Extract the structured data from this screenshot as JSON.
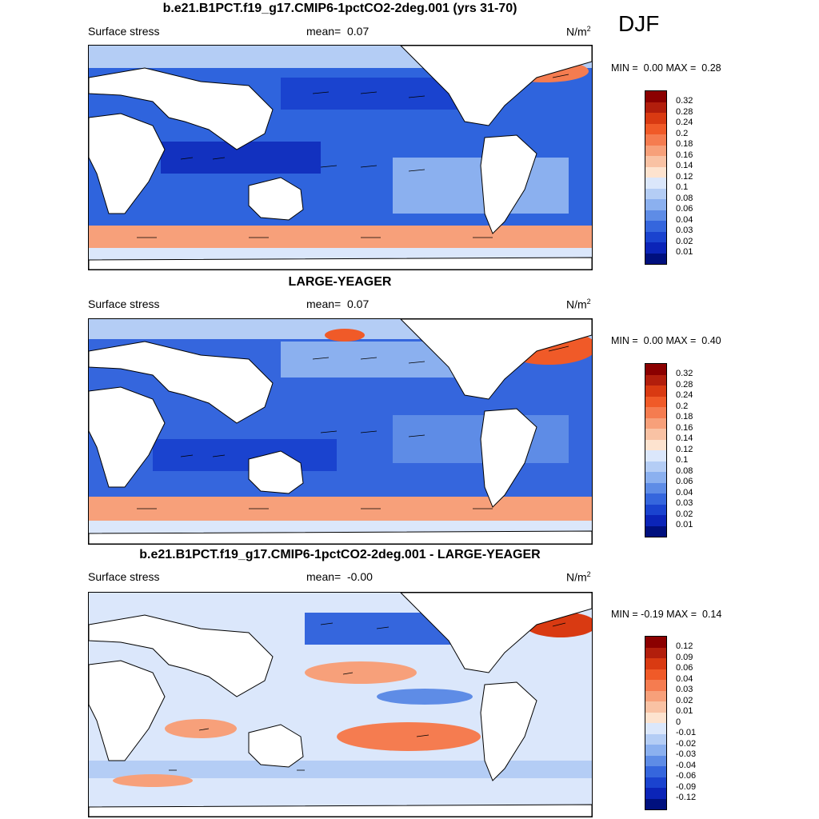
{
  "season": "DJF",
  "panels": [
    {
      "title": "b.e21.B1PCT.f19_g17.CMIP6-1pctCO2-2deg.001 (yrs 31-70)",
      "left_label": "Surface stress",
      "mean_label": "mean=",
      "mean_value": "0.07",
      "units": "N/m",
      "units_sup": "2",
      "min_label": "MIN =",
      "min_value": "0.00",
      "max_label": "MAX =",
      "max_value": "0.28",
      "colorbar_labels": [
        "0.32",
        "0.28",
        "0.24",
        "0.2",
        "0.18",
        "0.16",
        "0.14",
        "0.12",
        "0.1",
        "0.08",
        "0.06",
        "0.04",
        "0.03",
        "0.02",
        "0.01"
      ]
    },
    {
      "title": "LARGE-YEAGER",
      "left_label": "Surface stress",
      "mean_label": "mean=",
      "mean_value": "0.07",
      "units": "N/m",
      "units_sup": "2",
      "min_label": "MIN =",
      "min_value": "0.00",
      "max_label": "MAX =",
      "max_value": "0.40",
      "colorbar_labels": [
        "0.32",
        "0.28",
        "0.24",
        "0.2",
        "0.18",
        "0.16",
        "0.14",
        "0.12",
        "0.1",
        "0.08",
        "0.06",
        "0.04",
        "0.03",
        "0.02",
        "0.01"
      ]
    },
    {
      "title": "b.e21.B1PCT.f19_g17.CMIP6-1pctCO2-2deg.001 - LARGE-YEAGER",
      "left_label": "Surface stress",
      "mean_label": "mean=",
      "mean_value": "-0.00",
      "units": "N/m",
      "units_sup": "2",
      "min_label": "MIN =",
      "min_value": "-0.19",
      "max_label": "MAX =",
      "max_value": "0.14",
      "colorbar_labels": [
        "0.12",
        "0.09",
        "0.06",
        "0.04",
        "0.03",
        "0.02",
        "0.01",
        "0",
        "-0.01",
        "-0.02",
        "-0.03",
        "-0.04",
        "-0.06",
        "-0.09",
        "-0.12"
      ]
    }
  ],
  "colors": {
    "colorbar_scale": [
      "#8b0000",
      "#b21e0c",
      "#d93a12",
      "#f05a28",
      "#f57c50",
      "#f7a07a",
      "#f9c2a4",
      "#fde3cf",
      "#dbe7fb",
      "#b4cdf5",
      "#8bb0ef",
      "#5e8ce6",
      "#3566dd",
      "#1a43cf",
      "#0b24b8",
      "#00107e"
    ],
    "ocean_base": "#2f64dd",
    "land": "#ffffff",
    "coastline": "#000000",
    "vector": "#000000"
  },
  "icons": [
    "wind-vector-arrow-icon"
  ]
}
